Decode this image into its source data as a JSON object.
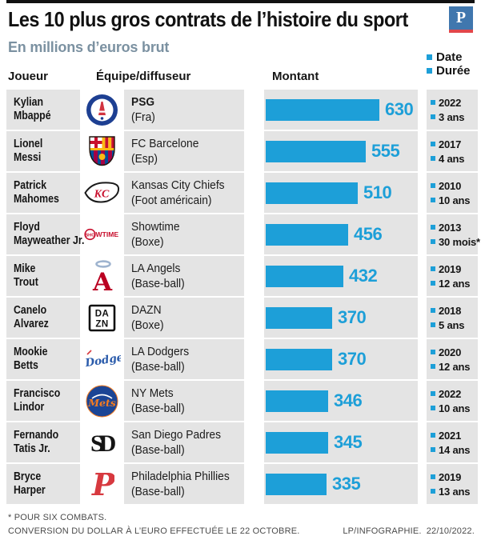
{
  "header": {
    "title": "Les 10 plus gros contrats de l’histoire du sport",
    "subtitle": "En millions d’euros brut",
    "brand_letter": "P",
    "legend": {
      "date_label": "Date",
      "duration_label": "Durée"
    },
    "columns": {
      "player": "Joueur",
      "team": "Équipe/diffuseur",
      "amount": "Montant"
    }
  },
  "chart_data": {
    "type": "bar",
    "orientation": "horizontal",
    "title": "Les 10 plus gros contrats de l’histoire du sport",
    "unit": "millions d’euros brut",
    "xlim": [
      0,
      630
    ],
    "rows": [
      {
        "player_line1": "Kylian",
        "player_line2": "Mbappé",
        "team": "PSG",
        "team_detail": "(Fra)",
        "team_bold": true,
        "logo": "psg-logo",
        "value": 630,
        "date": "2022",
        "duration": "3 ans"
      },
      {
        "player_line1": "Lionel",
        "player_line2": "Messi",
        "team": "FC Barcelone",
        "team_detail": "(Esp)",
        "logo": "fc-barcelone-logo",
        "value": 555,
        "date": "2017",
        "duration": "4 ans"
      },
      {
        "player_line1": "Patrick",
        "player_line2": "Mahomes",
        "team": "Kansas City Chiefs",
        "team_detail": "(Foot américain)",
        "logo": "kansas-city-chiefs-logo",
        "value": 510,
        "date": "2010",
        "duration": "10 ans"
      },
      {
        "player_line1": "Floyd",
        "player_line2": "Mayweather Jr.",
        "team": "Showtime",
        "team_detail": "(Boxe)",
        "logo": "showtime-logo",
        "value": 456,
        "date": "2013",
        "duration": "30 mois*"
      },
      {
        "player_line1": "Mike",
        "player_line2": "Trout",
        "team": "LA Angels",
        "team_detail": "(Base-ball)",
        "logo": "la-angels-logo",
        "value": 432,
        "date": "2019",
        "duration": "12 ans"
      },
      {
        "player_line1": "Canelo",
        "player_line2": "Alvarez",
        "team": "DAZN",
        "team_detail": "(Boxe)",
        "logo": "dazn-logo",
        "value": 370,
        "date": "2018",
        "duration": "5 ans"
      },
      {
        "player_line1": "Mookie",
        "player_line2": "Betts",
        "team": "LA Dodgers",
        "team_detail": "(Base-ball)",
        "logo": "la-dodgers-logo",
        "value": 370,
        "date": "2020",
        "duration": "12 ans"
      },
      {
        "player_line1": "Francisco",
        "player_line2": "Lindor",
        "team": "NY Mets",
        "team_detail": "(Base-ball)",
        "logo": "ny-mets-logo",
        "value": 346,
        "date": "2022",
        "duration": "10 ans"
      },
      {
        "player_line1": "Fernando",
        "player_line2": "Tatis Jr.",
        "team": "San Diego Padres",
        "team_detail": "(Base-ball)",
        "logo": "san-diego-padres-logo",
        "value": 345,
        "date": "2021",
        "duration": "14 ans"
      },
      {
        "player_line1": "Bryce",
        "player_line2": "Harper",
        "team": "Philadelphia Phillies",
        "team_detail": "(Base-ball)",
        "logo": "philadelphia-phillies-logo",
        "value": 335,
        "date": "2019",
        "duration": "13 ans"
      }
    ]
  },
  "footer": {
    "note1": "* POUR SIX COMBATS.",
    "note2": "CONVERSION DU DOLLAR À L’EURO EFFECTUÉE LE 22 OCTOBRE.",
    "credit": "LP/INFOGRAPHIE.",
    "credit_date": "22/10/2022."
  },
  "colors": {
    "bar": "#1d9fd8",
    "cell_background": "#e4e4e4",
    "subtitle": "#7b91a1",
    "brand_blue": "#4077ae",
    "brand_red": "#e2474b",
    "footer_text": "#4b4b4b"
  }
}
